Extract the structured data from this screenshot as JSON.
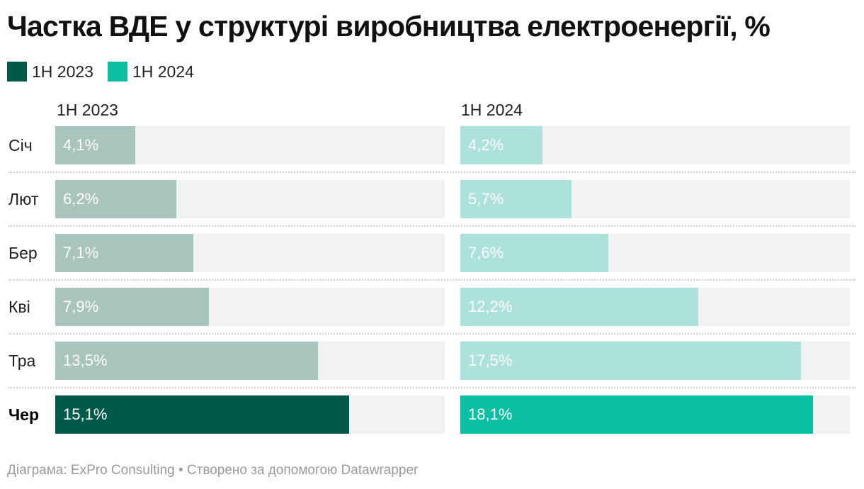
{
  "title": "Частка ВДЕ у структурі виробництва електроенергії, %",
  "footer": "Діаграма: ExPro Consulting • Створено за допомогою Datawrapper",
  "colors": {
    "h1_2023": "#02594a",
    "h1_2024": "#0bbfa2",
    "h1_2023_muted": "#a9c4bc",
    "h1_2024_muted": "#ade2da",
    "track": "#f2f2f2"
  },
  "chart_data": {
    "type": "bar",
    "orientation": "horizontal",
    "title": "Частка ВДЕ у структурі виробництва електроенергії, %",
    "categories": [
      "Січ",
      "Лют",
      "Бер",
      "Кві",
      "Тра",
      "Чер"
    ],
    "highlighted_category": "Чер",
    "xlim": [
      0,
      20
    ],
    "legend": {
      "position": "top-left",
      "entries": [
        "1H 2023",
        "1H 2024"
      ]
    },
    "series": [
      {
        "name": "1H 2023",
        "values": [
          4.1,
          6.2,
          7.1,
          7.9,
          13.5,
          15.1
        ],
        "labels": [
          "4,1%",
          "6,2%",
          "7,1%",
          "7,9%",
          "13,5%",
          "15,1%"
        ]
      },
      {
        "name": "1H 2024",
        "values": [
          4.2,
          5.7,
          7.6,
          12.2,
          17.5,
          18.1
        ],
        "labels": [
          "4,2%",
          "5,7%",
          "7,6%",
          "12,2%",
          "17,5%",
          "18,1%"
        ]
      }
    ]
  }
}
